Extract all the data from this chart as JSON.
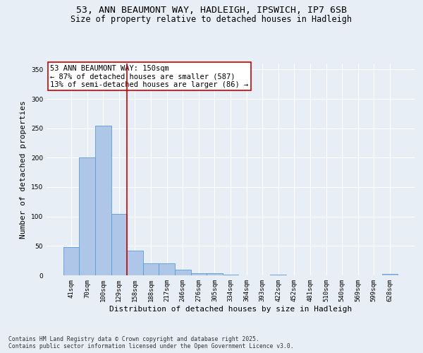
{
  "title_line1": "53, ANN BEAUMONT WAY, HADLEIGH, IPSWICH, IP7 6SB",
  "title_line2": "Size of property relative to detached houses in Hadleigh",
  "xlabel": "Distribution of detached houses by size in Hadleigh",
  "ylabel": "Number of detached properties",
  "categories": [
    "41sqm",
    "70sqm",
    "100sqm",
    "129sqm",
    "158sqm",
    "188sqm",
    "217sqm",
    "246sqm",
    "276sqm",
    "305sqm",
    "334sqm",
    "364sqm",
    "393sqm",
    "422sqm",
    "452sqm",
    "481sqm",
    "510sqm",
    "540sqm",
    "569sqm",
    "599sqm",
    "628sqm"
  ],
  "values": [
    48,
    200,
    255,
    105,
    42,
    20,
    20,
    10,
    4,
    4,
    1,
    0,
    0,
    1,
    0,
    0,
    0,
    0,
    0,
    0,
    2
  ],
  "bar_color": "#aec6e8",
  "bar_edge_color": "#5b9bd5",
  "red_line_index": 3.5,
  "annotation_text": "53 ANN BEAUMONT WAY: 150sqm\n← 87% of detached houses are smaller (587)\n13% of semi-detached houses are larger (86) →",
  "annotation_box_color": "#ffffff",
  "annotation_box_edge_color": "#cc0000",
  "ylim": [
    0,
    360
  ],
  "yticks": [
    0,
    50,
    100,
    150,
    200,
    250,
    300,
    350
  ],
  "bg_color": "#e8eef5",
  "grid_color": "#ffffff",
  "footnote": "Contains HM Land Registry data © Crown copyright and database right 2025.\nContains public sector information licensed under the Open Government Licence v3.0.",
  "title_fontsize": 9.5,
  "subtitle_fontsize": 8.5,
  "tick_fontsize": 6.5,
  "label_fontsize": 8,
  "annot_fontsize": 7.5,
  "footnote_fontsize": 5.8
}
